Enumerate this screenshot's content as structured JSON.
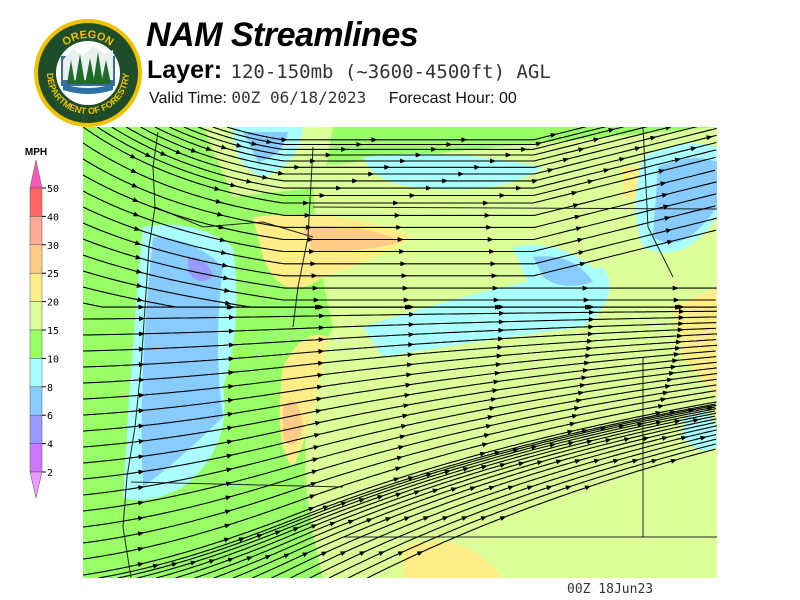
{
  "logo": {
    "top_text": "OREGON",
    "bottom_text": "DEPARTMENT OF FORESTRY"
  },
  "header": {
    "title": "NAM Streamlines",
    "layer_label": "Layer:",
    "layer_value": "120-150mb (~3600-4500ft) AGL",
    "valid_time_label": "Valid Time:",
    "valid_time": "00Z 06/18/2023",
    "forecast_hour_label": "Forecast Hour:",
    "forecast_hour": "00"
  },
  "legend": {
    "unit": "MPH",
    "ticks": [
      "50",
      "40",
      "30",
      "25",
      "20",
      "15",
      "10",
      "8",
      "6",
      "4",
      "2"
    ],
    "colors": {
      "over50": "#ff55bb",
      "40-50": "#ff6666",
      "30-40": "#ffaa99",
      "25-30": "#ffcc88",
      "20-25": "#ffee88",
      "15-20": "#ddff99",
      "10-15": "#99ff66",
      "8-10": "#aaffff",
      "6-8": "#88ccff",
      "4-6": "#9999ff",
      "2-4": "#cc77ff",
      "under2": "#ee99ff"
    }
  },
  "footer": {
    "stamp": "00Z 18Jun23"
  }
}
